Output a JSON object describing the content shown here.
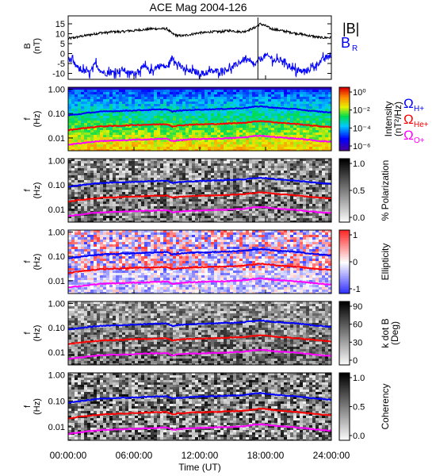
{
  "chart_data": [
    {
      "type": "line",
      "title": "ACE Mag 2004-126",
      "ylabel": "B",
      "yunit": "(nT)",
      "yticks": [
        "15",
        "10",
        "5",
        "0",
        "-5",
        "-10"
      ],
      "ylim": [
        -13,
        19
      ],
      "xlim_hours": [
        0,
        24
      ],
      "series": [
        {
          "name": "|B|",
          "color": "#000000",
          "x": [
            0,
            0.5,
            1,
            1.5,
            2,
            2.5,
            3,
            3.5,
            4,
            4.5,
            5,
            5.5,
            6,
            6.5,
            7,
            7.5,
            8,
            8.5,
            9,
            9.5,
            10,
            10.5,
            11,
            11.5,
            12,
            12.5,
            13,
            13.5,
            14,
            14.5,
            15,
            15.5,
            16,
            16.5,
            17,
            17.5,
            18,
            18.5,
            19,
            19.5,
            20,
            20.5,
            21,
            21.5,
            22,
            22.5,
            23,
            23.5,
            24
          ],
          "y": [
            7.5,
            8,
            8.5,
            9,
            9.5,
            10,
            10.5,
            10.5,
            11,
            11,
            11,
            11.5,
            11.5,
            12,
            12,
            12.5,
            12.5,
            12.5,
            12.5,
            10,
            9,
            9,
            9.5,
            10,
            10.5,
            10.5,
            11,
            11,
            11,
            11.5,
            11.5,
            11,
            11,
            12,
            13,
            15,
            14,
            12.5,
            12,
            11.5,
            11,
            10.5,
            10,
            9.5,
            9,
            8.5,
            8,
            8,
            8
          ]
        },
        {
          "name": "B_R",
          "color": "#0000ff",
          "x": [
            0,
            0.5,
            1,
            1.5,
            2,
            2.5,
            3,
            3.5,
            4,
            4.5,
            5,
            5.5,
            6,
            6.5,
            7,
            7.5,
            8,
            8.5,
            9,
            9.5,
            10,
            10.5,
            11,
            11.5,
            12,
            12.5,
            13,
            13.5,
            14,
            14.5,
            15,
            15.5,
            16,
            16.5,
            17,
            17.5,
            18,
            18.5,
            19,
            19.5,
            20,
            20.5,
            21,
            21.5,
            22,
            22.5,
            23,
            23.5,
            24
          ],
          "y": [
            -2,
            -5,
            -8,
            -9,
            -9.5,
            -5,
            -9,
            -10,
            -9.5,
            -9,
            -8,
            -10,
            -10,
            -8,
            -7,
            -9,
            -7,
            -6,
            -7,
            -2,
            -5,
            -8,
            -9,
            -9,
            -10,
            -10,
            -9,
            -9,
            -8.5,
            -8,
            -7,
            -5,
            -3,
            -4,
            -6,
            -3,
            -1,
            -2,
            -4,
            -3,
            -5,
            -8,
            -9,
            -9,
            -8,
            -6,
            -4,
            -2,
            -1
          ]
        }
      ],
      "legend": [
        "|B|",
        "B",
        "R"
      ]
    },
    {
      "type": "heatmap",
      "ylabel": "f",
      "yunit": "(Hz)",
      "yticks": [
        "1.00",
        "0.10",
        "0.01"
      ],
      "colorbar_label": "Intensity",
      "colorbar_unit": "(nT²/Hz)",
      "colorbar_ticks": [
        "10⁰",
        "10⁻²",
        "10⁻⁴",
        "10⁻⁶"
      ],
      "legend": [
        {
          "text": "Ω",
          "sub": "H+",
          "color": "#0000ff"
        },
        {
          "text": "Ω",
          "sub": "He+",
          "color": "#ff0000"
        },
        {
          "text": "Ω",
          "sub": "O+",
          "color": "#ff00ff"
        }
      ]
    },
    {
      "type": "heatmap",
      "ylabel": "f",
      "yunit": "(Hz)",
      "yticks": [
        "1.00",
        "0.10",
        "0.01"
      ],
      "colorbar_label": "% Polarization",
      "colorbar_ticks": [
        "1.0",
        "0.5",
        "0.0"
      ]
    },
    {
      "type": "heatmap",
      "ylabel": "f",
      "yunit": "(Hz)",
      "yticks": [
        "1.00",
        "0.10",
        "0.01"
      ],
      "colorbar_label": "Ellipticity",
      "colorbar_ticks": [
        "1",
        "0",
        "-1"
      ]
    },
    {
      "type": "heatmap",
      "ylabel": "f",
      "yunit": "(Hz)",
      "yticks": [
        "1.00",
        "0.10",
        "0.01"
      ],
      "colorbar_label": "k dot B",
      "colorbar_unit": "(Deg)",
      "colorbar_ticks": [
        "90",
        "60",
        "30",
        "0"
      ]
    },
    {
      "type": "heatmap",
      "ylabel": "f",
      "yunit": "(Hz)",
      "yticks": [
        "1.00",
        "0.10",
        "0.01"
      ],
      "colorbar_label": "Coherency",
      "colorbar_ticks": [
        "1.0",
        "0.5",
        "0.0"
      ]
    }
  ],
  "gyro_lines": {
    "x": [
      0,
      1,
      2,
      3,
      4,
      5,
      6,
      7,
      8,
      9,
      9.5,
      10,
      11,
      12,
      13,
      14,
      15,
      16,
      17,
      17.5,
      18,
      19,
      20,
      21,
      22,
      23,
      24
    ],
    "H": [
      0.085,
      0.095,
      0.11,
      0.12,
      0.125,
      0.13,
      0.135,
      0.14,
      0.145,
      0.15,
      0.12,
      0.13,
      0.14,
      0.145,
      0.15,
      0.155,
      0.16,
      0.17,
      0.19,
      0.2,
      0.19,
      0.17,
      0.16,
      0.15,
      0.13,
      0.12,
      0.11
    ],
    "He": [
      0.021,
      0.024,
      0.027,
      0.03,
      0.031,
      0.032,
      0.034,
      0.035,
      0.036,
      0.037,
      0.03,
      0.032,
      0.035,
      0.036,
      0.037,
      0.038,
      0.04,
      0.042,
      0.047,
      0.05,
      0.048,
      0.043,
      0.04,
      0.037,
      0.033,
      0.03,
      0.028
    ],
    "O": [
      0.0053,
      0.006,
      0.0068,
      0.0075,
      0.0078,
      0.008,
      0.0084,
      0.0087,
      0.009,
      0.0093,
      0.0075,
      0.008,
      0.0087,
      0.009,
      0.0093,
      0.0095,
      0.01,
      0.0105,
      0.012,
      0.0125,
      0.012,
      0.0107,
      0.01,
      0.0093,
      0.0083,
      0.0075,
      0.007
    ],
    "colors": {
      "H": "#0000ff",
      "He": "#ff0000",
      "O": "#ff00ff"
    }
  },
  "x_axis": {
    "label": "Time (UT)",
    "ticks": [
      "00:00:00",
      "06:00:00",
      "12:00:00",
      "18:00:00",
      "24:00:00"
    ]
  }
}
